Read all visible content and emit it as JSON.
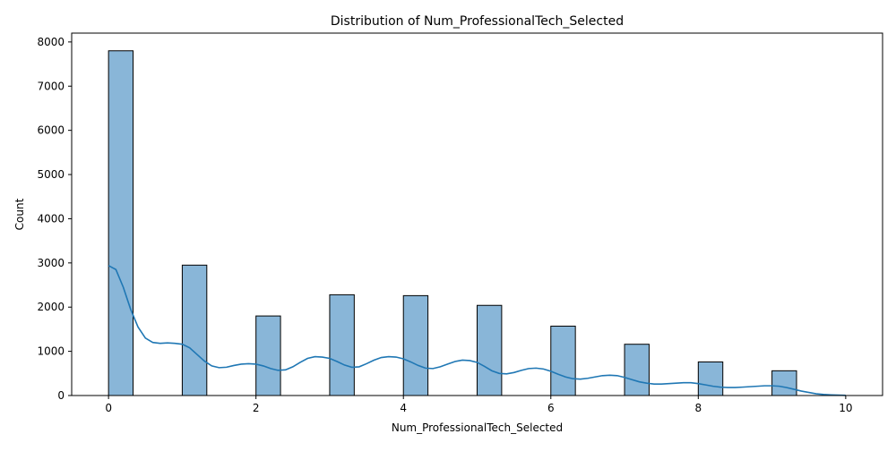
{
  "chart_data": {
    "type": "bar",
    "title": "Distribution of Num_ProfessionalTech_Selected",
    "xlabel": "Num_ProfessionalTech_Selected",
    "ylabel": "Count",
    "xlim": [
      -0.5,
      10.5
    ],
    "ylim": [
      0,
      8200
    ],
    "xticks": [
      0,
      2,
      4,
      6,
      8,
      10
    ],
    "yticks": [
      0,
      1000,
      2000,
      3000,
      4000,
      5000,
      6000,
      7000,
      8000
    ],
    "bin_width": 0.333,
    "bins": [
      {
        "x_start": 0,
        "value": 7800
      },
      {
        "x_start": 1,
        "value": 2950
      },
      {
        "x_start": 2,
        "value": 1800
      },
      {
        "x_start": 3,
        "value": 2280
      },
      {
        "x_start": 4,
        "value": 2260
      },
      {
        "x_start": 5,
        "value": 2040
      },
      {
        "x_start": 6,
        "value": 1570
      },
      {
        "x_start": 7,
        "value": 1160
      },
      {
        "x_start": 8,
        "value": 760
      },
      {
        "x_start": 9,
        "value": 560
      }
    ],
    "kde": {
      "x": [
        0,
        0.1,
        0.2,
        0.3,
        0.4,
        0.5,
        0.6,
        0.7,
        0.8,
        0.9,
        1.0,
        1.1,
        1.2,
        1.3,
        1.4,
        1.5,
        1.6,
        1.7,
        1.8,
        1.9,
        2.0,
        2.1,
        2.2,
        2.3,
        2.4,
        2.5,
        2.6,
        2.7,
        2.8,
        2.9,
        3.0,
        3.1,
        3.2,
        3.3,
        3.4,
        3.5,
        3.6,
        3.7,
        3.8,
        3.9,
        4.0,
        4.1,
        4.2,
        4.3,
        4.4,
        4.5,
        4.6,
        4.7,
        4.8,
        4.9,
        5.0,
        5.1,
        5.2,
        5.3,
        5.4,
        5.5,
        5.6,
        5.7,
        5.8,
        5.9,
        6.0,
        6.1,
        6.2,
        6.3,
        6.4,
        6.5,
        6.6,
        6.7,
        6.8,
        6.9,
        7.0,
        7.1,
        7.2,
        7.3,
        7.4,
        7.5,
        7.6,
        7.7,
        7.8,
        7.9,
        8.0,
        8.1,
        8.2,
        8.3,
        8.4,
        8.5,
        8.6,
        8.7,
        8.8,
        8.9,
        9.0,
        9.1,
        9.2,
        9.3,
        9.4,
        9.5,
        9.6,
        9.7,
        9.8,
        9.9,
        10.0
      ],
      "y": [
        2940,
        2850,
        2450,
        1950,
        1550,
        1300,
        1200,
        1180,
        1190,
        1180,
        1160,
        1080,
        930,
        780,
        670,
        630,
        640,
        680,
        710,
        720,
        710,
        670,
        610,
        570,
        580,
        650,
        750,
        840,
        880,
        870,
        840,
        770,
        690,
        640,
        650,
        720,
        800,
        860,
        880,
        870,
        830,
        760,
        680,
        620,
        610,
        650,
        710,
        770,
        800,
        790,
        750,
        660,
        560,
        500,
        490,
        520,
        570,
        610,
        620,
        600,
        550,
        480,
        420,
        380,
        370,
        390,
        420,
        450,
        460,
        450,
        410,
        360,
        310,
        280,
        260,
        260,
        270,
        280,
        290,
        290,
        270,
        240,
        210,
        190,
        180,
        180,
        190,
        200,
        210,
        220,
        220,
        210,
        180,
        140,
        100,
        70,
        40,
        25,
        15,
        8,
        3
      ]
    },
    "colors": {
      "bar_fill": "#89b6d8",
      "bar_edge": "#000000",
      "kde_line": "#1f77b4",
      "axis": "#000000"
    },
    "grid": false,
    "legend": "none"
  }
}
